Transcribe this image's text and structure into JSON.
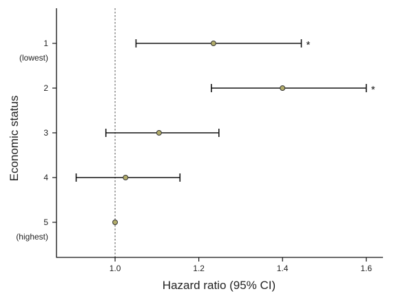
{
  "chart_data": {
    "type": "scatter",
    "subtype": "forest-plot",
    "xlabel": "Hazard ratio (95% CI)",
    "ylabel": "Economic status",
    "xlim": [
      0.86,
      1.64
    ],
    "x_ticks": [
      {
        "value": 1.0,
        "label": "1.0"
      },
      {
        "value": 1.2,
        "label": "1.2"
      },
      {
        "value": 1.4,
        "label": "1.4"
      },
      {
        "value": 1.6,
        "label": "1.6"
      }
    ],
    "reference_line": 1.0,
    "rows": [
      {
        "label": "1",
        "sublabel": "(lowest)",
        "hr": 1.235,
        "lower": 1.05,
        "upper": 1.445,
        "marker": "*"
      },
      {
        "label": "2",
        "sublabel": "",
        "hr": 1.4,
        "lower": 1.23,
        "upper": 1.6,
        "marker": "*"
      },
      {
        "label": "3",
        "sublabel": "",
        "hr": 1.105,
        "lower": 0.978,
        "upper": 1.248,
        "marker": ""
      },
      {
        "label": "4",
        "sublabel": "",
        "hr": 1.025,
        "lower": 0.907,
        "upper": 1.155,
        "marker": ""
      },
      {
        "label": "5",
        "sublabel": "(highest)",
        "hr": 1.0,
        "lower": null,
        "upper": null,
        "marker": ""
      }
    ],
    "colors": {
      "point_fill": "#b3ad6b",
      "line": "#111111",
      "reference": "#777777"
    }
  }
}
